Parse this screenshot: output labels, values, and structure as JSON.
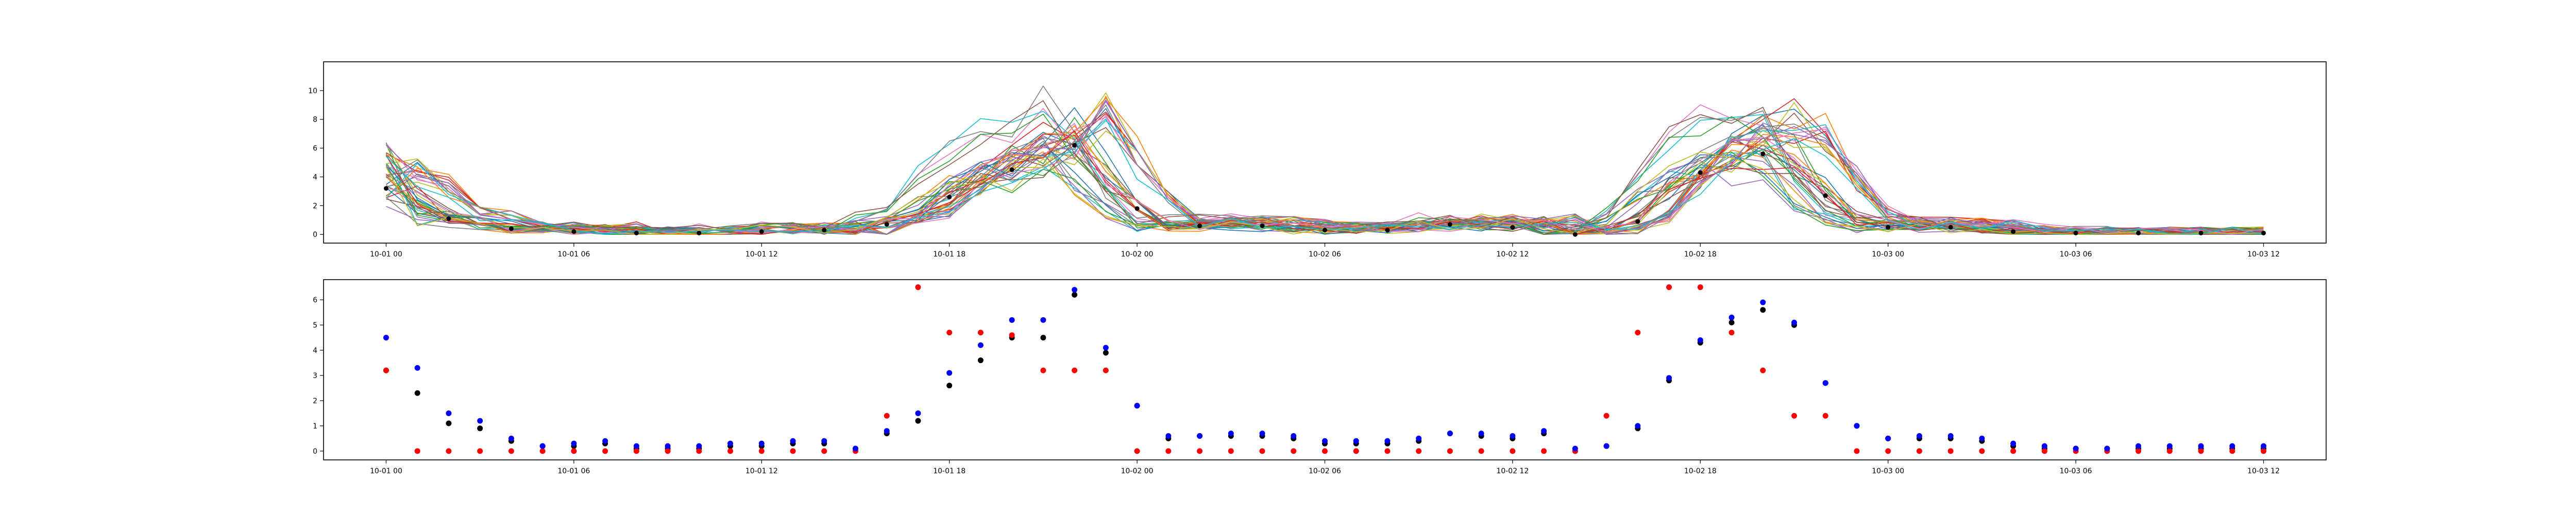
{
  "chart_data": [
    {
      "type": "line",
      "title": "",
      "xlabel": "",
      "ylabel": "",
      "grid": false,
      "x_start": "2023-10-01 00:00",
      "x_step_hours": 1,
      "x_range_hours": [
        -2,
        62
      ],
      "x_tick_labels": [
        "10-01 00",
        "10-01 06",
        "10-01 12",
        "10-01 18",
        "10-02 00",
        "10-02 06",
        "10-02 12",
        "10-02 18",
        "10-03 00",
        "10-03 06",
        "10-03 12"
      ],
      "ylim": [
        -0.6,
        12
      ],
      "y_ticks": [
        0,
        2,
        4,
        6,
        8,
        10
      ],
      "y_tick_labels": [
        "0",
        "2",
        "4",
        "6",
        "8",
        "10"
      ],
      "palette": [
        "#1f77b4",
        "#ff7f0e",
        "#2ca02c",
        "#d62728",
        "#9467bd",
        "#8c564b",
        "#e377c2",
        "#7f7f7f",
        "#bcbd22",
        "#17becf"
      ],
      "mean_color": "#000000",
      "mean_values": [
        3.2,
        2.3,
        1.1,
        0.9,
        0.4,
        0.2,
        0.2,
        0.3,
        0.1,
        0.1,
        0.1,
        0.2,
        0.2,
        0.3,
        0.3,
        0.1,
        0.7,
        1.2,
        2.6,
        3.6,
        4.5,
        4.5,
        6.2,
        3.9,
        1.8,
        0.5,
        0.6,
        0.6,
        0.6,
        0.5,
        0.3,
        0.3,
        0.3,
        0.4,
        0.7,
        0.6,
        0.5,
        0.7,
        0.0,
        0.2,
        0.9,
        2.8,
        4.3,
        5.1,
        5.6,
        5.0,
        2.7,
        1.0,
        0.5,
        0.5,
        0.5,
        0.4,
        0.2,
        0.1,
        0.1,
        0.1,
        0.1,
        0.1,
        0.1,
        0.1,
        0.1
      ]
    },
    {
      "type": "scatter",
      "title": "",
      "xlabel": "",
      "ylabel": "",
      "grid": false,
      "x_start": "2023-10-01 00:00",
      "x_step_hours": 1,
      "x_range_hours": [
        -2,
        62
      ],
      "x_tick_labels": [
        "10-01 00",
        "10-01 06",
        "10-01 12",
        "10-01 18",
        "10-02 00",
        "10-02 06",
        "10-02 12",
        "10-02 18",
        "10-03 00",
        "10-03 06",
        "10-03 12"
      ],
      "ylim": [
        -0.35,
        6.8
      ],
      "y_ticks": [
        0,
        1,
        2,
        3,
        4,
        5,
        6
      ],
      "y_tick_labels": [
        "0",
        "1",
        "2",
        "3",
        "4",
        "5",
        "6"
      ],
      "series": [
        {
          "color": "#000000",
          "values": [
            3.2,
            2.3,
            1.1,
            0.9,
            0.4,
            0.2,
            0.2,
            0.3,
            0.1,
            0.1,
            0.1,
            0.2,
            0.2,
            0.3,
            0.3,
            0.1,
            0.7,
            1.2,
            2.6,
            3.6,
            4.5,
            4.5,
            6.2,
            3.9,
            1.8,
            0.5,
            0.6,
            0.6,
            0.6,
            0.5,
            0.3,
            0.3,
            0.3,
            0.4,
            0.7,
            0.6,
            0.5,
            0.7,
            0.0,
            0.2,
            0.9,
            2.8,
            4.3,
            5.1,
            5.6,
            5.0,
            2.7,
            1.0,
            0.5,
            0.5,
            0.5,
            0.4,
            0.2,
            0.1,
            0.1,
            0.1,
            0.1,
            0.1,
            0.1,
            0.1,
            0.1
          ]
        },
        {
          "color": "#ff0000",
          "values": [
            3.2,
            0.0,
            0.0,
            0.0,
            0.0,
            0.0,
            0.0,
            0.0,
            0.0,
            0.0,
            0.0,
            0.0,
            0.0,
            0.0,
            0.0,
            0.0,
            1.4,
            6.5,
            4.7,
            4.7,
            4.6,
            3.2,
            3.2,
            3.2,
            0.0,
            0.0,
            0.0,
            0.0,
            0.0,
            0.0,
            0.0,
            0.0,
            0.0,
            0.0,
            0.0,
            0.0,
            0.0,
            0.0,
            0.0,
            1.4,
            4.7,
            6.5,
            6.5,
            4.7,
            3.2,
            1.4,
            1.4,
            0.0,
            0.0,
            0.0,
            0.0,
            0.0,
            0.0,
            0.0,
            0.0,
            0.0,
            0.0,
            0.0,
            0.0,
            0.0,
            0.0
          ]
        },
        {
          "color": "#0000ff",
          "values": [
            4.5,
            3.3,
            1.5,
            1.2,
            0.5,
            0.2,
            0.3,
            0.4,
            0.2,
            0.2,
            0.2,
            0.3,
            0.3,
            0.4,
            0.4,
            0.1,
            0.8,
            1.5,
            3.1,
            4.2,
            5.2,
            5.2,
            6.4,
            4.1,
            1.8,
            0.6,
            0.6,
            0.7,
            0.7,
            0.6,
            0.4,
            0.4,
            0.4,
            0.5,
            0.7,
            0.7,
            0.6,
            0.8,
            0.1,
            0.2,
            1.0,
            2.9,
            4.4,
            5.3,
            5.9,
            5.1,
            2.7,
            1.0,
            0.5,
            0.6,
            0.6,
            0.5,
            0.3,
            0.2,
            0.1,
            0.1,
            0.2,
            0.2,
            0.2,
            0.2,
            0.2
          ]
        }
      ]
    }
  ]
}
